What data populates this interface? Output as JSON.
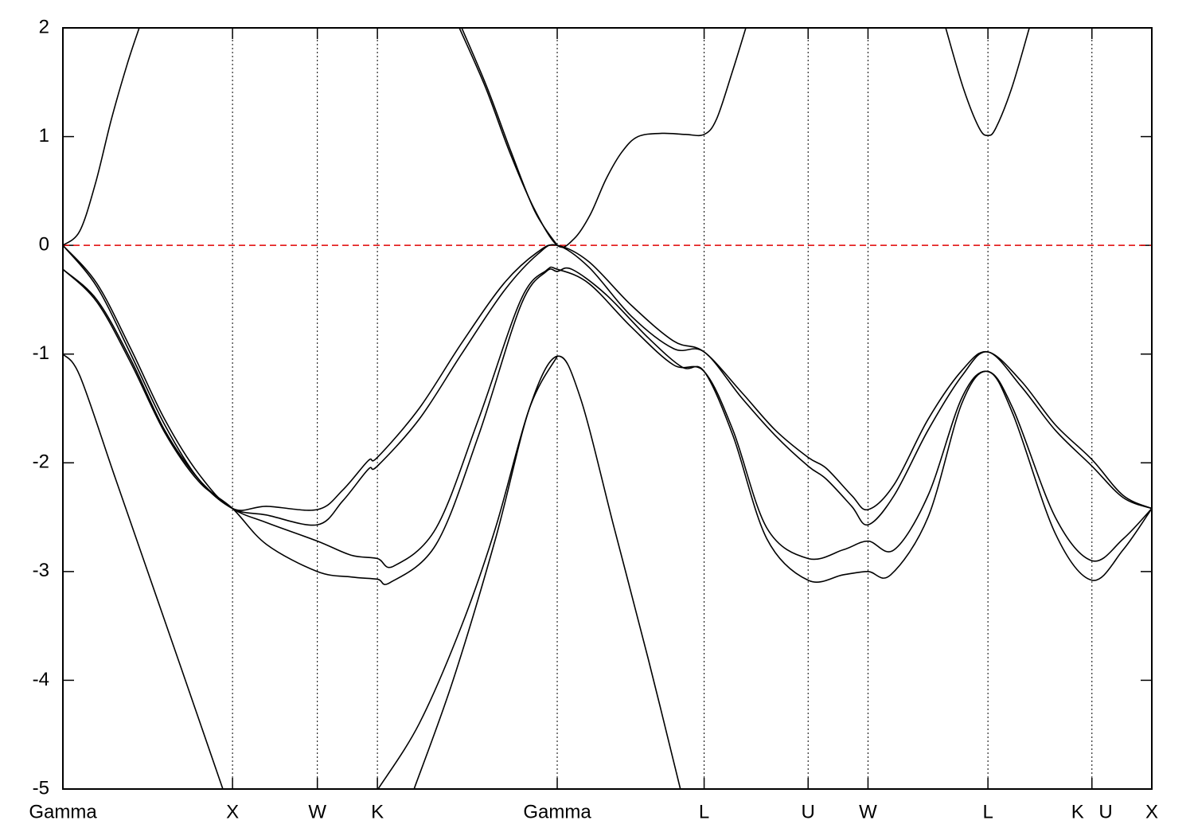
{
  "chart_data": {
    "type": "line",
    "xlim": [
      0,
      6.419
    ],
    "ylim": [
      -5,
      2
    ],
    "xticks": [
      {
        "value": 0,
        "label": "Gamma"
      },
      {
        "value": 1,
        "label": "X"
      },
      {
        "value": 1.5,
        "label": "W"
      },
      {
        "value": 1.854,
        "label": "K"
      },
      {
        "value": 2.914,
        "label": "Gamma"
      },
      {
        "value": 3.78,
        "label": "L"
      },
      {
        "value": 4.393,
        "label": "U"
      },
      {
        "value": 4.746,
        "label": "W"
      },
      {
        "value": 5.453,
        "label": "L"
      },
      {
        "value": 6.066,
        "label": "K U"
      },
      {
        "value": 6.419,
        "label": "X"
      }
    ],
    "yticks": [
      2,
      1,
      0,
      -1,
      -2,
      -3,
      -4,
      -5
    ],
    "xgrid": true,
    "hline": {
      "value": 0,
      "color": "#e00000"
    },
    "series": [
      {
        "color": "#000000",
        "x": [
          0,
          0.099,
          0.192,
          0.286,
          0.38,
          0.45
        ],
        "values": [
          0,
          0.13,
          0.57,
          1.16,
          1.67,
          2.0
        ]
      },
      {
        "color": "#000000",
        "x": [
          2.337,
          2.492,
          2.633,
          2.774,
          2.914,
          3.013,
          3.108,
          3.202,
          3.296,
          3.39,
          3.531,
          3.671,
          3.78,
          3.853,
          3.947,
          4.026
        ],
        "values": [
          2.0,
          1.45,
          0.86,
          0.35,
          0,
          0.06,
          0.28,
          0.61,
          0.86,
          1.0,
          1.03,
          1.02,
          1.02,
          1.16,
          1.6,
          2.0
        ]
      },
      {
        "color": "#000000",
        "x": [
          5.204,
          5.307,
          5.401,
          5.453,
          5.5,
          5.594,
          5.697
        ],
        "values": [
          2.0,
          1.45,
          1.08,
          1.01,
          1.08,
          1.45,
          2.0
        ]
      },
      {
        "color": "#000000",
        "x": [
          2.351,
          2.501,
          2.642,
          2.783,
          2.914
        ],
        "values": [
          2.0,
          1.45,
          0.86,
          0.31,
          0
        ]
      },
      {
        "color": "#000000",
        "x": [
          0,
          0.2,
          0.4,
          0.6,
          0.8,
          1,
          1.2,
          1.5,
          1.65,
          1.8,
          1.854,
          2.1,
          2.35,
          2.6,
          2.8,
          2.914,
          3.1,
          3.35,
          3.6,
          3.78,
          4.0,
          4.2,
          4.393,
          4.5,
          4.65,
          4.746,
          4.9,
          5.1,
          5.3,
          5.453,
          5.65,
          5.85,
          6.066,
          6.25,
          6.419
        ],
        "values": [
          0,
          -0.35,
          -0.95,
          -1.6,
          -2.1,
          -2.42,
          -2.4,
          -2.43,
          -2.25,
          -1.98,
          -1.95,
          -1.5,
          -0.9,
          -0.35,
          -0.06,
          0,
          -0.15,
          -0.55,
          -0.88,
          -0.98,
          -1.35,
          -1.7,
          -1.95,
          -2.05,
          -2.3,
          -2.43,
          -2.2,
          -1.6,
          -1.15,
          -0.98,
          -1.25,
          -1.65,
          -1.97,
          -2.3,
          -2.42
        ]
      },
      {
        "color": "#000000",
        "x": [
          0,
          0.2,
          0.4,
          0.6,
          0.8,
          1,
          1.2,
          1.5,
          1.65,
          1.8,
          1.854,
          2.1,
          2.35,
          2.6,
          2.8,
          2.914,
          3.1,
          3.35,
          3.6,
          3.78,
          4.0,
          4.2,
          4.393,
          4.5,
          4.65,
          4.746,
          4.9,
          5.1,
          5.3,
          5.453,
          5.65,
          5.85,
          6.066,
          6.25,
          6.419
        ],
        "values": [
          0,
          -0.38,
          -1.0,
          -1.65,
          -2.15,
          -2.42,
          -2.48,
          -2.57,
          -2.35,
          -2.06,
          -2.03,
          -1.6,
          -1.0,
          -0.42,
          -0.08,
          0,
          -0.2,
          -0.65,
          -0.95,
          -0.98,
          -1.4,
          -1.75,
          -2.03,
          -2.15,
          -2.4,
          -2.57,
          -2.3,
          -1.7,
          -1.2,
          -0.98,
          -1.3,
          -1.7,
          -2.03,
          -2.32,
          -2.42
        ]
      },
      {
        "color": "#000000",
        "x": [
          0,
          0.2,
          0.4,
          0.6,
          0.8,
          1,
          1.2,
          1.5,
          1.7,
          1.854,
          1.95,
          2.2,
          2.45,
          2.7,
          2.85,
          2.914,
          3.1,
          3.35,
          3.6,
          3.78,
          3.95,
          4.15,
          4.393,
          4.6,
          4.746,
          4.9,
          5.1,
          5.3,
          5.453,
          5.6,
          5.85,
          6.066,
          6.25,
          6.419
        ],
        "values": [
          -0.22,
          -0.5,
          -1.05,
          -1.7,
          -2.15,
          -2.42,
          -2.55,
          -2.72,
          -2.85,
          -2.88,
          -2.95,
          -2.6,
          -1.6,
          -0.5,
          -0.23,
          -0.22,
          -0.35,
          -0.75,
          -1.1,
          -1.16,
          -1.7,
          -2.6,
          -2.88,
          -2.8,
          -2.72,
          -2.8,
          -2.3,
          -1.4,
          -1.16,
          -1.5,
          -2.5,
          -2.9,
          -2.7,
          -2.42
        ]
      },
      {
        "color": "#000000",
        "x": [
          0,
          0.2,
          0.4,
          0.6,
          0.8,
          1,
          1.2,
          1.5,
          1.7,
          1.854,
          1.93,
          2.2,
          2.45,
          2.7,
          2.85,
          2.914,
          3.0,
          3.2,
          3.45,
          3.65,
          3.78,
          3.95,
          4.15,
          4.393,
          4.6,
          4.746,
          4.88,
          5.1,
          5.3,
          5.453,
          5.6,
          5.85,
          6.066,
          6.25,
          6.419
        ],
        "values": [
          -0.22,
          -0.52,
          -1.08,
          -1.72,
          -2.17,
          -2.42,
          -2.75,
          -3.0,
          -3.05,
          -3.07,
          -3.1,
          -2.75,
          -1.75,
          -0.55,
          -0.24,
          -0.24,
          -0.22,
          -0.45,
          -0.85,
          -1.12,
          -1.16,
          -1.75,
          -2.7,
          -3.08,
          -3.03,
          -3.0,
          -3.03,
          -2.5,
          -1.45,
          -1.16,
          -1.55,
          -2.65,
          -3.08,
          -2.8,
          -2.42
        ]
      },
      {
        "color": "#000000",
        "x": [
          0,
          0.1,
          0.3,
          0.5,
          0.7,
          0.943
        ],
        "values": [
          -1.0,
          -1.2,
          -2.1,
          -3.0,
          -3.9,
          -5.0
        ]
      },
      {
        "color": "#000000",
        "x": [
          2.07,
          2.3,
          2.55,
          2.75,
          2.914,
          3.05,
          3.25,
          3.45,
          3.64
        ],
        "values": [
          -5.0,
          -4.0,
          -2.7,
          -1.5,
          -1.02,
          -1.4,
          -2.6,
          -3.8,
          -5.0
        ]
      },
      {
        "color": "#000000",
        "x": [
          1.858,
          2.1,
          2.35,
          2.55,
          2.75,
          2.914
        ],
        "values": [
          -5.0,
          -4.4,
          -3.5,
          -2.6,
          -1.5,
          -1.02
        ]
      }
    ]
  }
}
